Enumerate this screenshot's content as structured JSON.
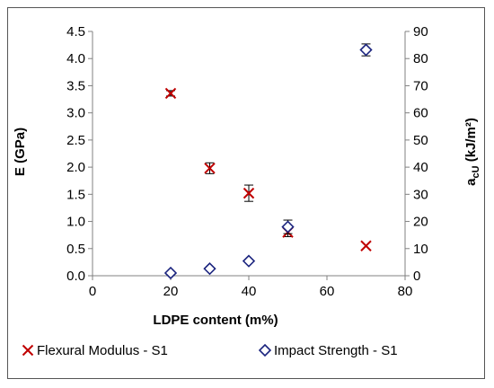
{
  "chart_data": {
    "type": "scatter",
    "xlabel": "LDPE content (m%)",
    "ylabel_left": "E (GPa)",
    "ylabel_right_main": "a",
    "ylabel_right_sub": "cU",
    "ylabel_right_unit": " (kJ/m²)",
    "xlim": [
      0,
      80
    ],
    "ylim_left": [
      0,
      4.5
    ],
    "ylim_right": [
      0,
      90
    ],
    "x_ticks": [
      0,
      20,
      40,
      60,
      80
    ],
    "y_ticks_left": [
      "0.0",
      "0.5",
      "1.0",
      "1.5",
      "2.0",
      "2.5",
      "3.0",
      "3.5",
      "4.0",
      "4.5"
    ],
    "y_ticks_right": [
      0,
      10,
      20,
      30,
      40,
      50,
      60,
      70,
      80,
      90
    ],
    "grid": "none",
    "legend_position": "bottom",
    "series": [
      {
        "name": "Flexural Modulus - S1",
        "axis": "left",
        "marker": "x",
        "color": "#c00000",
        "points": [
          {
            "x": 20,
            "y": 3.36,
            "err": 0.05
          },
          {
            "x": 30,
            "y": 1.98,
            "err": 0.1
          },
          {
            "x": 40,
            "y": 1.52,
            "err": 0.15
          },
          {
            "x": 50,
            "y": 0.8,
            "err": 0.08
          },
          {
            "x": 70,
            "y": 0.55,
            "err": 0
          }
        ]
      },
      {
        "name": "Impact Strength - S1",
        "axis": "right",
        "marker": "diamond",
        "color": "#1a237e",
        "points": [
          {
            "x": 20,
            "y": 1.0,
            "err": 0
          },
          {
            "x": 30,
            "y": 2.6,
            "err": 0.3
          },
          {
            "x": 40,
            "y": 5.4,
            "err": 0.5
          },
          {
            "x": 50,
            "y": 18.0,
            "err": 2.5
          },
          {
            "x": 70,
            "y": 83.2,
            "err": 2.2
          }
        ]
      }
    ]
  }
}
